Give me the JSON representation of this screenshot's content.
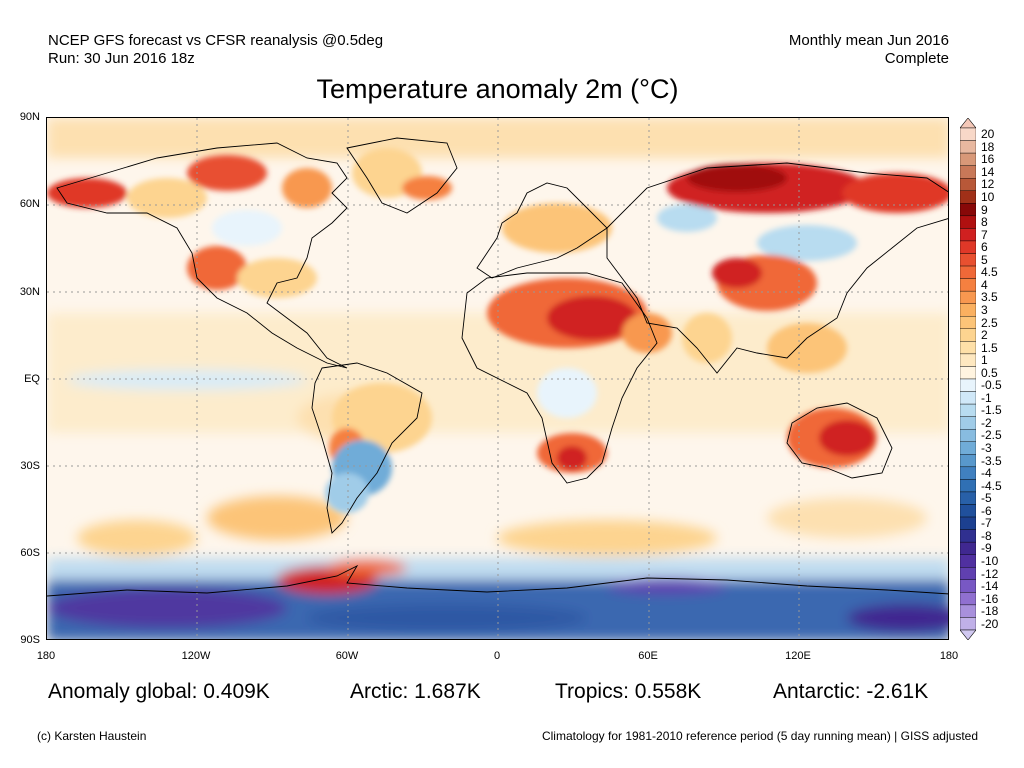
{
  "header": {
    "line1": "NCEP GFS forecast vs CFSR reanalysis @0.5deg",
    "line2": "Run: 30 Jun 2016 18z",
    "right1": "Monthly mean Jun 2016",
    "right2": "Complete"
  },
  "title": "Temperature anomaly 2m (°C)",
  "lat_labels": [
    "90N",
    "60N",
    "30N",
    "EQ",
    "30S",
    "60S",
    "90S"
  ],
  "lon_labels": [
    "180",
    "120W",
    "60W",
    "0",
    "60E",
    "120E",
    "180"
  ],
  "stats": {
    "global": "Anomaly global: 0.409K",
    "arctic": "Arctic: 1.687K",
    "tropics": "Tropics: 0.558K",
    "antarctic": "Antarctic: -2.61K"
  },
  "footer": {
    "left": "(c) Karsten Haustein",
    "right": "Climatology for 1981-2010 reference period (5 day running mean) | GISS adjusted"
  },
  "colorbar": {
    "labels": [
      "20",
      "18",
      "16",
      "14",
      "12",
      "10",
      "9",
      "8",
      "7",
      "6",
      "5",
      "4.5",
      "4",
      "3.5",
      "3",
      "2.5",
      "2",
      "1.5",
      "1",
      "0.5",
      "-0.5",
      "-1",
      "-1.5",
      "-2",
      "-2.5",
      "-3",
      "-3.5",
      "-4",
      "-4.5",
      "-5",
      "-6",
      "-7",
      "-8",
      "-9",
      "-10",
      "-12",
      "-14",
      "-16",
      "-18",
      "-20"
    ],
    "colors": [
      "#f8d8c8",
      "#e8b8a0",
      "#d89878",
      "#c87858",
      "#b85838",
      "#a03018",
      "#880808",
      "#b01010",
      "#d02020",
      "#e03828",
      "#e85030",
      "#f06838",
      "#f58040",
      "#f89850",
      "#fab060",
      "#fcc478",
      "#fdd490",
      "#fee0a8",
      "#fee8c0",
      "#fff4e0",
      "#e8f4fc",
      "#d0e8f8",
      "#b8dcf0",
      "#a0cce8",
      "#88bce0",
      "#70acd8",
      "#5898cc",
      "#4080c0",
      "#3070b4",
      "#2860a8",
      "#20509c",
      "#1c4090",
      "#303090",
      "#402890",
      "#5030a0",
      "#6040b0",
      "#7858c4",
      "#9070d0",
      "#a890dc",
      "#c0b0e8"
    ],
    "cap_top": "#f4c8b8",
    "cap_bottom": "#d0c8f0"
  }
}
